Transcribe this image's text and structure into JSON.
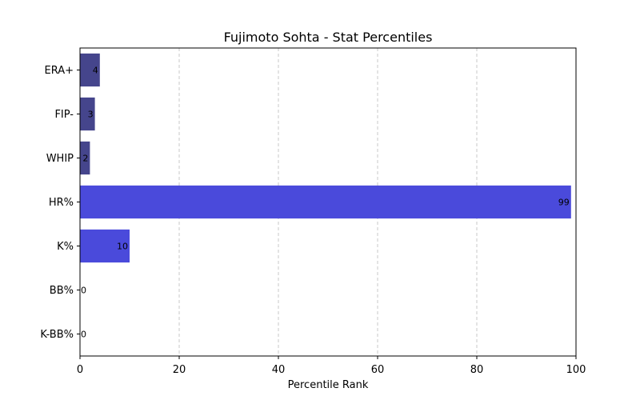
{
  "chart_data": {
    "type": "bar",
    "orientation": "horizontal",
    "title": "Fujimoto Sohta - Stat Percentiles",
    "xlabel": "Percentile Rank",
    "ylabel": "",
    "xlim": [
      0,
      100
    ],
    "xticks": [
      0,
      20,
      40,
      60,
      80,
      100
    ],
    "grid": "x-dashed",
    "categories": [
      "ERA+",
      "FIP-",
      "WHIP",
      "HR%",
      "K%",
      "BB%",
      "K-BB%"
    ],
    "values": [
      4,
      3,
      2,
      99,
      10,
      0,
      0
    ],
    "colors": [
      "#45458c",
      "#45458c",
      "#45458c",
      "#4a4adb",
      "#4a4adb",
      "#4a4adb",
      "#4a4adb"
    ]
  }
}
